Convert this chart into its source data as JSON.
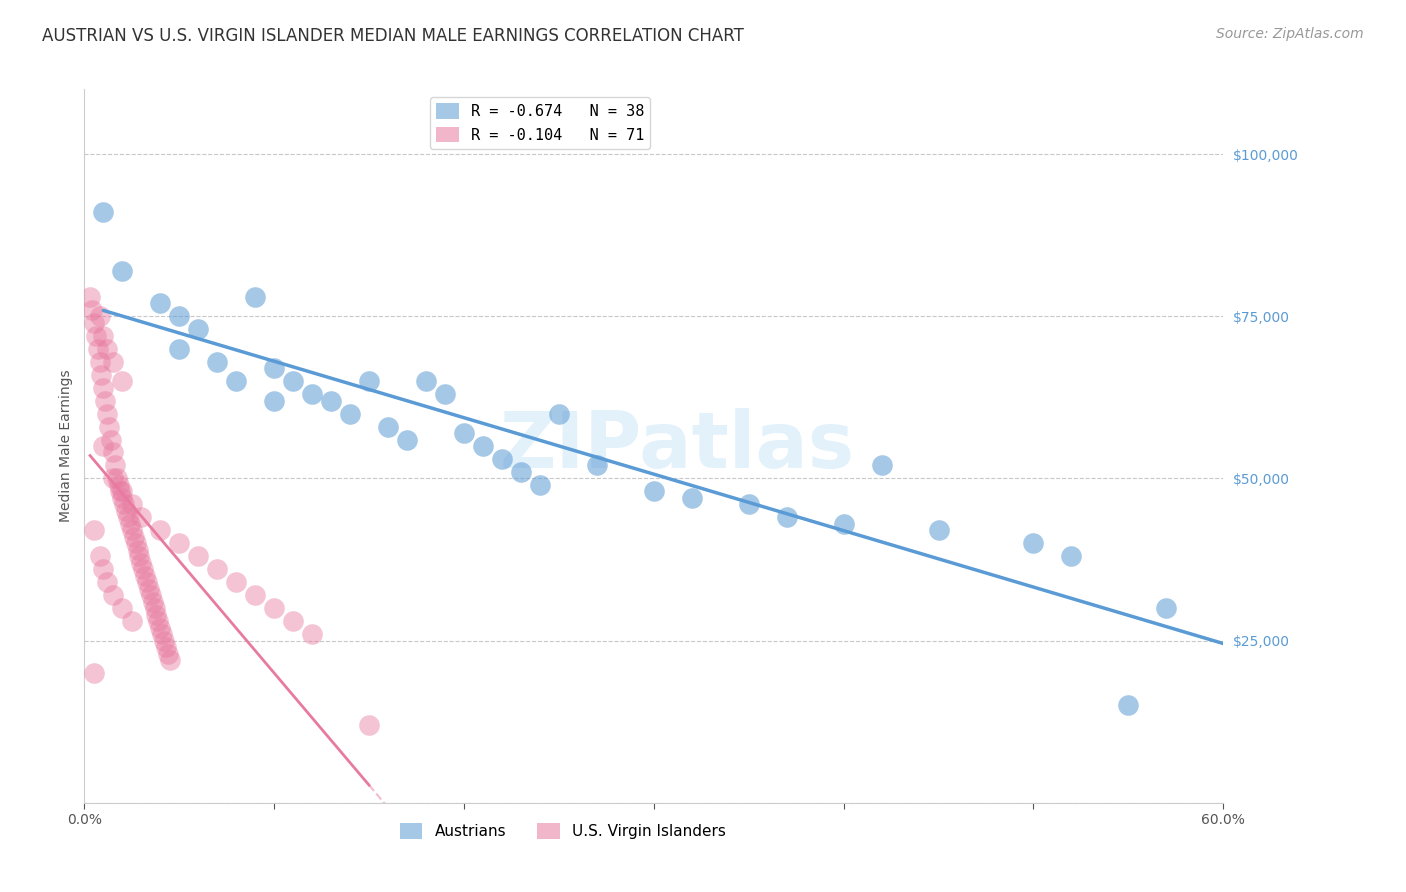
{
  "title": "AUSTRIAN VS U.S. VIRGIN ISLANDER MEDIAN MALE EARNINGS CORRELATION CHART",
  "source": "Source: ZipAtlas.com",
  "ylabel": "Median Male Earnings",
  "xlim": [
    0.0,
    0.6
  ],
  "ylim": [
    0,
    110000
  ],
  "yticks": [
    0,
    25000,
    50000,
    75000,
    100000
  ],
  "xticks": [
    0.0,
    0.1,
    0.2,
    0.3,
    0.4,
    0.5,
    0.6
  ],
  "background_color": "#ffffff",
  "grid_color": "#c8c8c8",
  "blue_color": "#5b9bd5",
  "pink_color": "#e87aa0",
  "legend_blue_label": "R = -0.674   N = 38",
  "legend_pink_label": "R = -0.104   N = 71",
  "legend_bottom_blue": "Austrians",
  "legend_bottom_pink": "U.S. Virgin Islanders",
  "austrians_x": [
    0.01,
    0.02,
    0.04,
    0.05,
    0.05,
    0.06,
    0.07,
    0.08,
    0.09,
    0.1,
    0.1,
    0.11,
    0.12,
    0.13,
    0.14,
    0.15,
    0.16,
    0.17,
    0.18,
    0.19,
    0.2,
    0.21,
    0.22,
    0.23,
    0.24,
    0.25,
    0.27,
    0.3,
    0.32,
    0.35,
    0.37,
    0.4,
    0.42,
    0.45,
    0.5,
    0.52,
    0.55,
    0.57
  ],
  "austrians_y": [
    91000,
    82000,
    77000,
    75000,
    70000,
    73000,
    68000,
    65000,
    78000,
    67000,
    62000,
    65000,
    63000,
    62000,
    60000,
    65000,
    58000,
    56000,
    65000,
    63000,
    57000,
    55000,
    53000,
    51000,
    49000,
    60000,
    52000,
    48000,
    47000,
    46000,
    44000,
    43000,
    52000,
    42000,
    40000,
    38000,
    15000,
    30000
  ],
  "vi_x": [
    0.003,
    0.004,
    0.005,
    0.006,
    0.007,
    0.008,
    0.009,
    0.01,
    0.011,
    0.012,
    0.013,
    0.014,
    0.015,
    0.016,
    0.017,
    0.018,
    0.019,
    0.02,
    0.021,
    0.022,
    0.023,
    0.024,
    0.025,
    0.026,
    0.027,
    0.028,
    0.029,
    0.03,
    0.031,
    0.032,
    0.033,
    0.034,
    0.035,
    0.036,
    0.037,
    0.038,
    0.039,
    0.04,
    0.041,
    0.042,
    0.043,
    0.044,
    0.045,
    0.005,
    0.008,
    0.01,
    0.012,
    0.015,
    0.02,
    0.025,
    0.01,
    0.015,
    0.02,
    0.025,
    0.03,
    0.04,
    0.05,
    0.06,
    0.07,
    0.08,
    0.09,
    0.1,
    0.11,
    0.12,
    0.008,
    0.01,
    0.012,
    0.015,
    0.02,
    0.15,
    0.005
  ],
  "vi_y": [
    78000,
    76000,
    74000,
    72000,
    70000,
    68000,
    66000,
    64000,
    62000,
    60000,
    58000,
    56000,
    54000,
    52000,
    50000,
    49000,
    48000,
    47000,
    46000,
    45000,
    44000,
    43000,
    42000,
    41000,
    40000,
    39000,
    38000,
    37000,
    36000,
    35000,
    34000,
    33000,
    32000,
    31000,
    30000,
    29000,
    28000,
    27000,
    26000,
    25000,
    24000,
    23000,
    22000,
    42000,
    38000,
    36000,
    34000,
    32000,
    30000,
    28000,
    55000,
    50000,
    48000,
    46000,
    44000,
    42000,
    40000,
    38000,
    36000,
    34000,
    32000,
    30000,
    28000,
    26000,
    75000,
    72000,
    70000,
    68000,
    65000,
    12000,
    20000
  ],
  "title_fontsize": 12,
  "axis_label_fontsize": 10,
  "tick_fontsize": 10,
  "source_fontsize": 10
}
